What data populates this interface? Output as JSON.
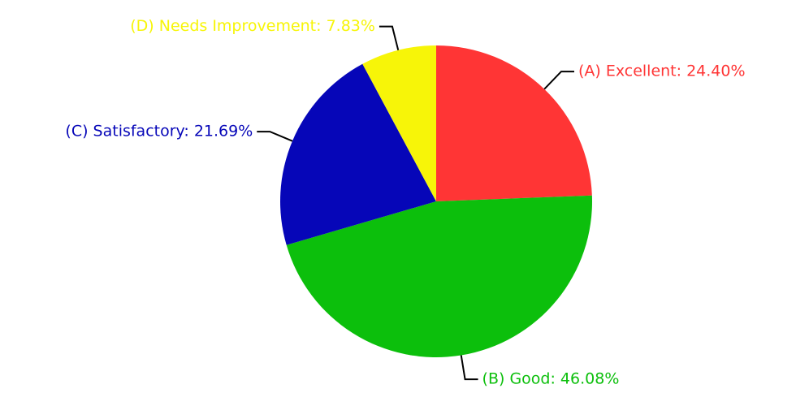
{
  "chart_data": {
    "type": "pie",
    "values": [
      24.4,
      46.08,
      21.69,
      7.83
    ],
    "value_labels": [
      "(A) Excellent: 24.40%",
      "(B) Good: 46.08%",
      "(C) Satisfactory: 21.69%",
      "(D) Needs Improvement: 7.83%"
    ],
    "colors": [
      "#ff3535",
      "#0cbf0c",
      "#0606b8",
      "#f7f508"
    ]
  }
}
